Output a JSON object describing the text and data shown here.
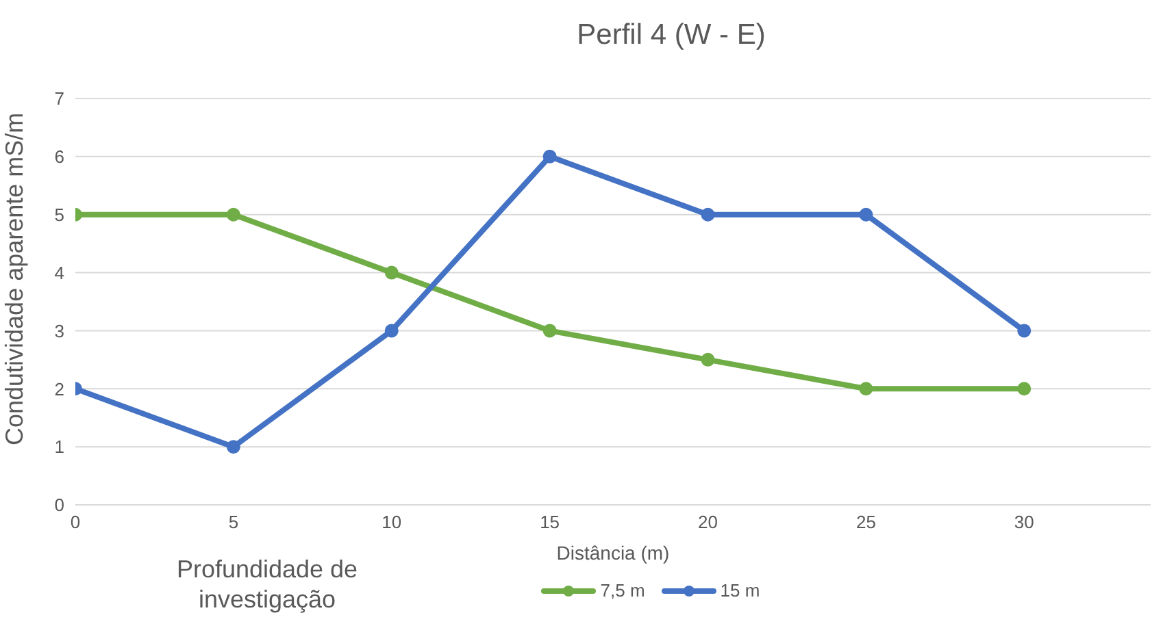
{
  "chart_data": {
    "type": "line",
    "title": "Perfil 4 (W - E)",
    "xlabel": "Distância (m)",
    "ylabel": "Condutividade aparente mS/m",
    "legend_title": "Profundidade de investigação",
    "x": [
      0,
      5,
      10,
      15,
      20,
      25,
      30
    ],
    "series": [
      {
        "name": "7,5 m",
        "color": "#70ad47",
        "values": [
          5,
          5,
          4,
          3,
          2.5,
          2,
          2
        ]
      },
      {
        "name": "15 m",
        "color": "#4472c4",
        "values": [
          2,
          1,
          3,
          6,
          5,
          5,
          3
        ]
      }
    ],
    "xlim": [
      0,
      34
    ],
    "xticks": [
      0,
      5,
      10,
      15,
      20,
      25,
      30
    ],
    "ylim": [
      0,
      7
    ],
    "yticks": [
      0,
      1,
      2,
      3,
      4,
      5,
      6,
      7
    ],
    "grid": "y",
    "legend": "bottom",
    "marker": "circle",
    "line_style": "solid"
  }
}
